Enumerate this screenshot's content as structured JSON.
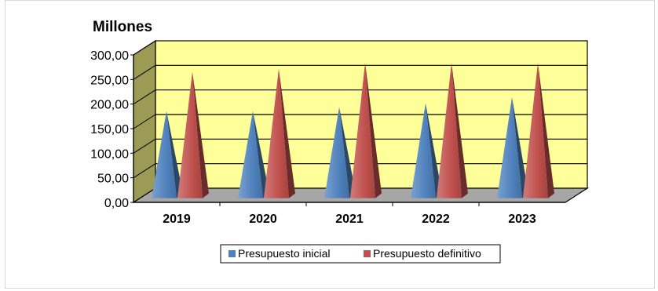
{
  "chart_data": {
    "type": "bar",
    "title": "",
    "ylabel": "Millones",
    "xlabel": "",
    "categories": [
      "2019",
      "2020",
      "2021",
      "2022",
      "2023"
    ],
    "y_tick_labels": [
      "0,00",
      "50,00",
      "100,00",
      "150,00",
      "200,00",
      "250,00",
      "300,00"
    ],
    "ylim": [
      0,
      300
    ],
    "grid": true,
    "legend_position": "bottom",
    "series": [
      {
        "name": "Presupuesto inicial",
        "color": "#4f81bd",
        "values": [
          170,
          170,
          178,
          186,
          198
        ]
      },
      {
        "name": "Presupuesto definitivo",
        "color": "#c0504d",
        "values": [
          250,
          256,
          268,
          268,
          268
        ]
      }
    ],
    "colors": {
      "wall": "#ffff99",
      "floor": "#a6a6a6",
      "side_wall": "#9b9b55"
    }
  }
}
